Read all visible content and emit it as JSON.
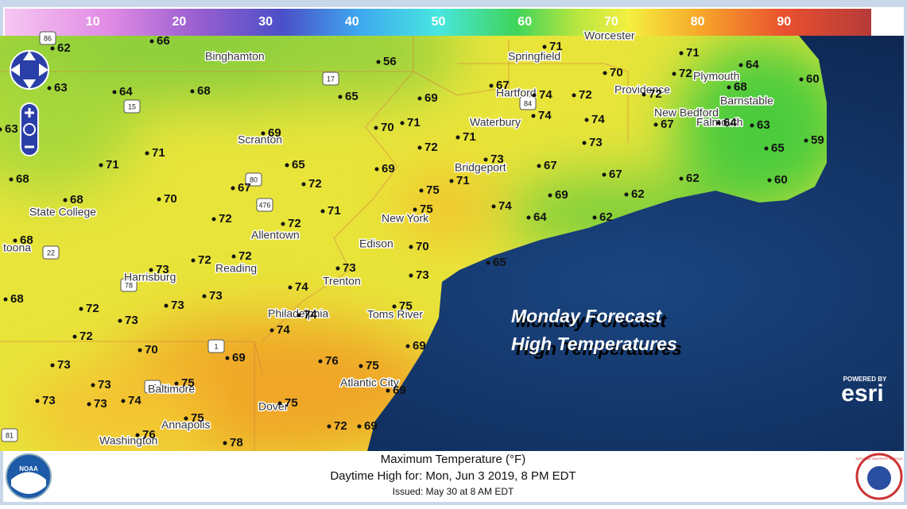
{
  "legend": {
    "range": [
      0,
      100
    ],
    "ticks": [
      10,
      20,
      30,
      40,
      50,
      60,
      70,
      80,
      90
    ]
  },
  "cities": [
    "Binghamton",
    "Springfield",
    "Worcester",
    "Hartford",
    "Providence",
    "Plymouth",
    "Barnstable",
    "New Bedford",
    "Falmouth",
    "Waterbury",
    "Scranton",
    "Bridgeport",
    "State College",
    "New York",
    "Allentown",
    "Edison",
    "toona",
    "Reading",
    "Harrisburg",
    "Trenton",
    "Philadelphia",
    "Toms River",
    "Baltimore",
    "Atlantic City",
    "Dover",
    "Annapolis",
    "Washington"
  ],
  "shields": [
    "86",
    "17",
    "15",
    "84",
    "80",
    "476",
    "78",
    "22",
    "1",
    "95",
    "81"
  ],
  "temps": [
    66,
    62,
    56,
    64,
    63,
    68,
    65,
    69,
    70,
    71,
    72,
    69,
    65,
    72,
    67,
    71,
    71,
    68,
    68,
    70,
    72,
    71,
    72,
    75,
    75,
    69,
    71,
    73,
    71,
    67,
    69,
    74,
    64,
    62,
    62,
    67,
    62,
    60,
    65,
    59,
    63,
    64,
    67,
    68,
    64,
    72,
    71,
    70,
    72,
    74,
    73,
    72,
    74,
    74,
    67,
    71,
    60,
    68,
    72,
    72,
    73,
    73,
    70,
    73,
    65,
    74,
    73,
    73,
    72,
    73,
    72,
    68,
    74,
    75,
    74,
    69,
    70,
    69,
    73,
    76,
    75,
    73,
    75,
    73,
    73,
    74,
    69,
    75,
    75,
    72,
    69,
    76,
    78,
    63
  ],
  "overlay": {
    "line1": "Monday Forecast",
    "line2": "High Temperatures"
  },
  "footer": {
    "title": "Maximum Temperature (°F)",
    "subtitle": "Daytime High for: Mon, Jun  3 2019,   8 PM EDT",
    "issued": "Issued: May 30 at 8 AM EDT"
  },
  "logos": {
    "powered": "POWERED BY",
    "esri": "esri",
    "noaa": "NOAA",
    "nws": "NATIONAL WEATHER SERVICE"
  }
}
